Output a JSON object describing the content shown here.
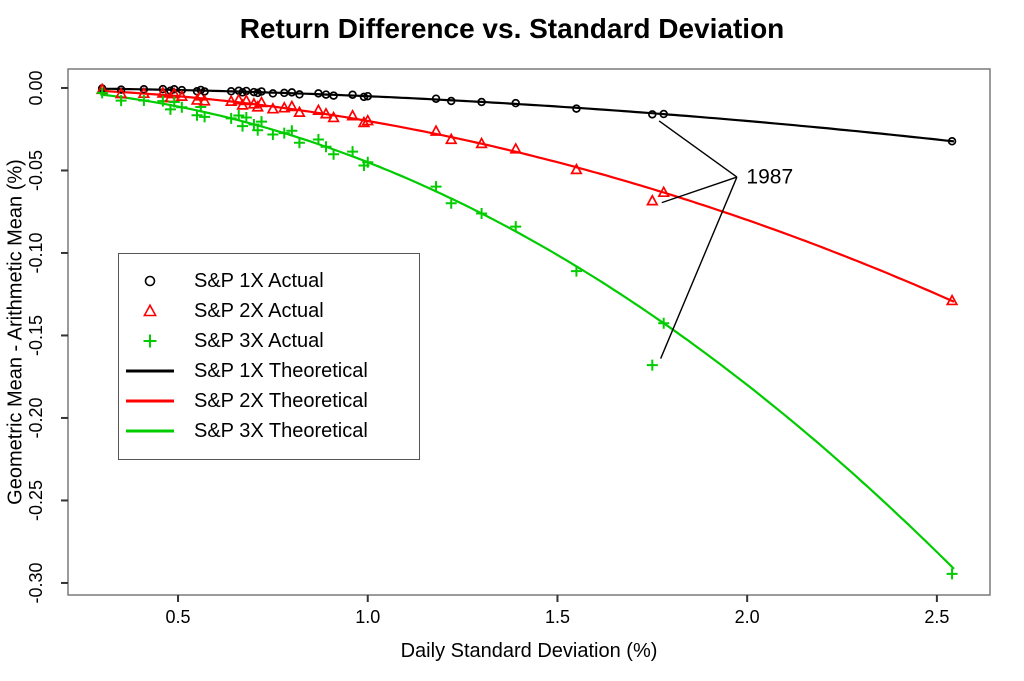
{
  "chart_data": {
    "type": "scatter",
    "title": "Return Difference vs. Standard Deviation",
    "xlabel": "Daily Standard Deviation (%)",
    "ylabel": "Geometric Mean - Arithmetic Mean (%)",
    "xlim": [
      0.21,
      2.64
    ],
    "ylim": [
      -0.3073,
      0.0115
    ],
    "grid": false,
    "x_ticks": {
      "values": [
        0.5,
        1.0,
        1.5,
        2.0,
        2.5
      ],
      "labels": [
        "0.5",
        "1.0",
        "1.5",
        "2.0",
        "2.5"
      ]
    },
    "y_ticks": {
      "values": [
        0.0,
        -0.05,
        -0.1,
        -0.15,
        -0.2,
        -0.25,
        -0.3
      ],
      "labels": [
        "0.00",
        "-0.05",
        "-0.10",
        "-0.15",
        "-0.20",
        "-0.25",
        "-0.30"
      ]
    },
    "points_columns": [
      "daily_std_dev_pct",
      "sp_1x_actual",
      "sp_2x_actual",
      "sp_3x_actual"
    ],
    "points": [
      [
        0.3,
        -0.0003,
        -0.001,
        -0.003
      ],
      [
        0.35,
        -0.001,
        -0.0036,
        -0.0077
      ],
      [
        0.41,
        -0.0008,
        -0.0034,
        -0.0076
      ],
      [
        0.46,
        -0.0007,
        -0.0032,
        -0.008
      ],
      [
        0.48,
        -0.0017,
        -0.006,
        -0.013
      ],
      [
        0.49,
        -0.0008,
        -0.0036,
        -0.0085
      ],
      [
        0.51,
        -0.0013,
        -0.0052,
        -0.0117
      ],
      [
        0.55,
        -0.002,
        -0.0075,
        -0.0165
      ],
      [
        0.56,
        -0.0012,
        -0.005,
        -0.0115
      ],
      [
        0.57,
        -0.0021,
        -0.008,
        -0.0175
      ],
      [
        0.64,
        -0.002,
        -0.0082,
        -0.0184
      ],
      [
        0.66,
        -0.0017,
        -0.0073,
        -0.0167
      ],
      [
        0.67,
        -0.0027,
        -0.0105,
        -0.0231
      ],
      [
        0.68,
        -0.0018,
        -0.0078,
        -0.0179
      ],
      [
        0.7,
        -0.0025,
        -0.0098,
        -0.0221
      ],
      [
        0.71,
        -0.003,
        -0.0116,
        -0.0256
      ],
      [
        0.72,
        -0.0021,
        -0.009,
        -0.0204
      ],
      [
        0.75,
        -0.0033,
        -0.0128,
        -0.0282
      ],
      [
        0.78,
        -0.003,
        -0.0122,
        -0.0274
      ],
      [
        0.8,
        -0.0027,
        -0.0114,
        -0.0259
      ],
      [
        0.82,
        -0.0039,
        -0.0149,
        -0.0332
      ],
      [
        0.87,
        -0.0033,
        -0.0137,
        -0.0312
      ],
      [
        0.89,
        -0.004,
        -0.0158,
        -0.0356
      ],
      [
        0.91,
        -0.0046,
        -0.0181,
        -0.0402
      ],
      [
        0.96,
        -0.0041,
        -0.017,
        -0.0386
      ],
      [
        0.99,
        -0.0054,
        -0.0211,
        -0.047
      ],
      [
        1.0,
        -0.005,
        -0.02,
        -0.045
      ],
      [
        1.18,
        -0.0065,
        -0.0263,
        -0.0598
      ],
      [
        1.22,
        -0.0079,
        -0.0313,
        -0.0699
      ],
      [
        1.3,
        -0.0085,
        -0.0338,
        -0.0761
      ],
      [
        1.39,
        -0.0092,
        -0.0371,
        -0.084
      ],
      [
        1.55,
        -0.0125,
        -0.0496,
        -0.111
      ],
      [
        1.75,
        -0.016,
        -0.0685,
        -0.168
      ],
      [
        1.78,
        -0.0158,
        -0.0634,
        -0.1426
      ],
      [
        2.54,
        -0.0323,
        -0.129,
        -0.2945
      ]
    ],
    "theoretical_curves": [
      {
        "name": "S&P 1X Theoretical",
        "coef_per_sigma_sq": 0.005,
        "color": "#000000"
      },
      {
        "name": "S&P 2X Theoretical",
        "coef_per_sigma_sq": 0.02,
        "color": "#FF0000"
      },
      {
        "name": "S&P 3X Theoretical",
        "coef_per_sigma_sq": 0.045,
        "color": "#00CC00"
      }
    ],
    "sigma_range": [
      0.295,
      2.545
    ],
    "annotation": {
      "label": "1987",
      "text_sigma": 1.998,
      "text_v": -0.054,
      "origin_sigma": 1.973,
      "origin_v": -0.054,
      "targets": [
        {
          "series": "sp_1x_actual",
          "sigma": 1.768,
          "v": -0.02
        },
        {
          "series": "sp_2x_actual",
          "sigma": 1.775,
          "v": -0.0695
        },
        {
          "series": "sp_3x_actual",
          "sigma": 1.772,
          "v": -0.164
        }
      ]
    },
    "legend_position": "left-middle"
  },
  "legend": [
    {
      "label": "S&P 1X Actual",
      "marker": "circle",
      "color": "#000000"
    },
    {
      "label": "S&P 2X Actual",
      "marker": "triangle",
      "color": "#FF0000"
    },
    {
      "label": "S&P 3X Actual",
      "marker": "plus",
      "color": "#00CC00"
    },
    {
      "label": "S&P 1X Theoretical",
      "marker": "line",
      "color": "#000000"
    },
    {
      "label": "S&P 2X Theoretical",
      "marker": "line",
      "color": "#FF0000"
    },
    {
      "label": "S&P 3X Theoretical",
      "marker": "line",
      "color": "#00CC00"
    }
  ],
  "colors": {
    "series_1x": "#000000",
    "series_2x": "#FF0000",
    "series_3x": "#00CC00",
    "plot_border": "#7a7a7a",
    "tick": "#333333",
    "text": "#000000"
  }
}
